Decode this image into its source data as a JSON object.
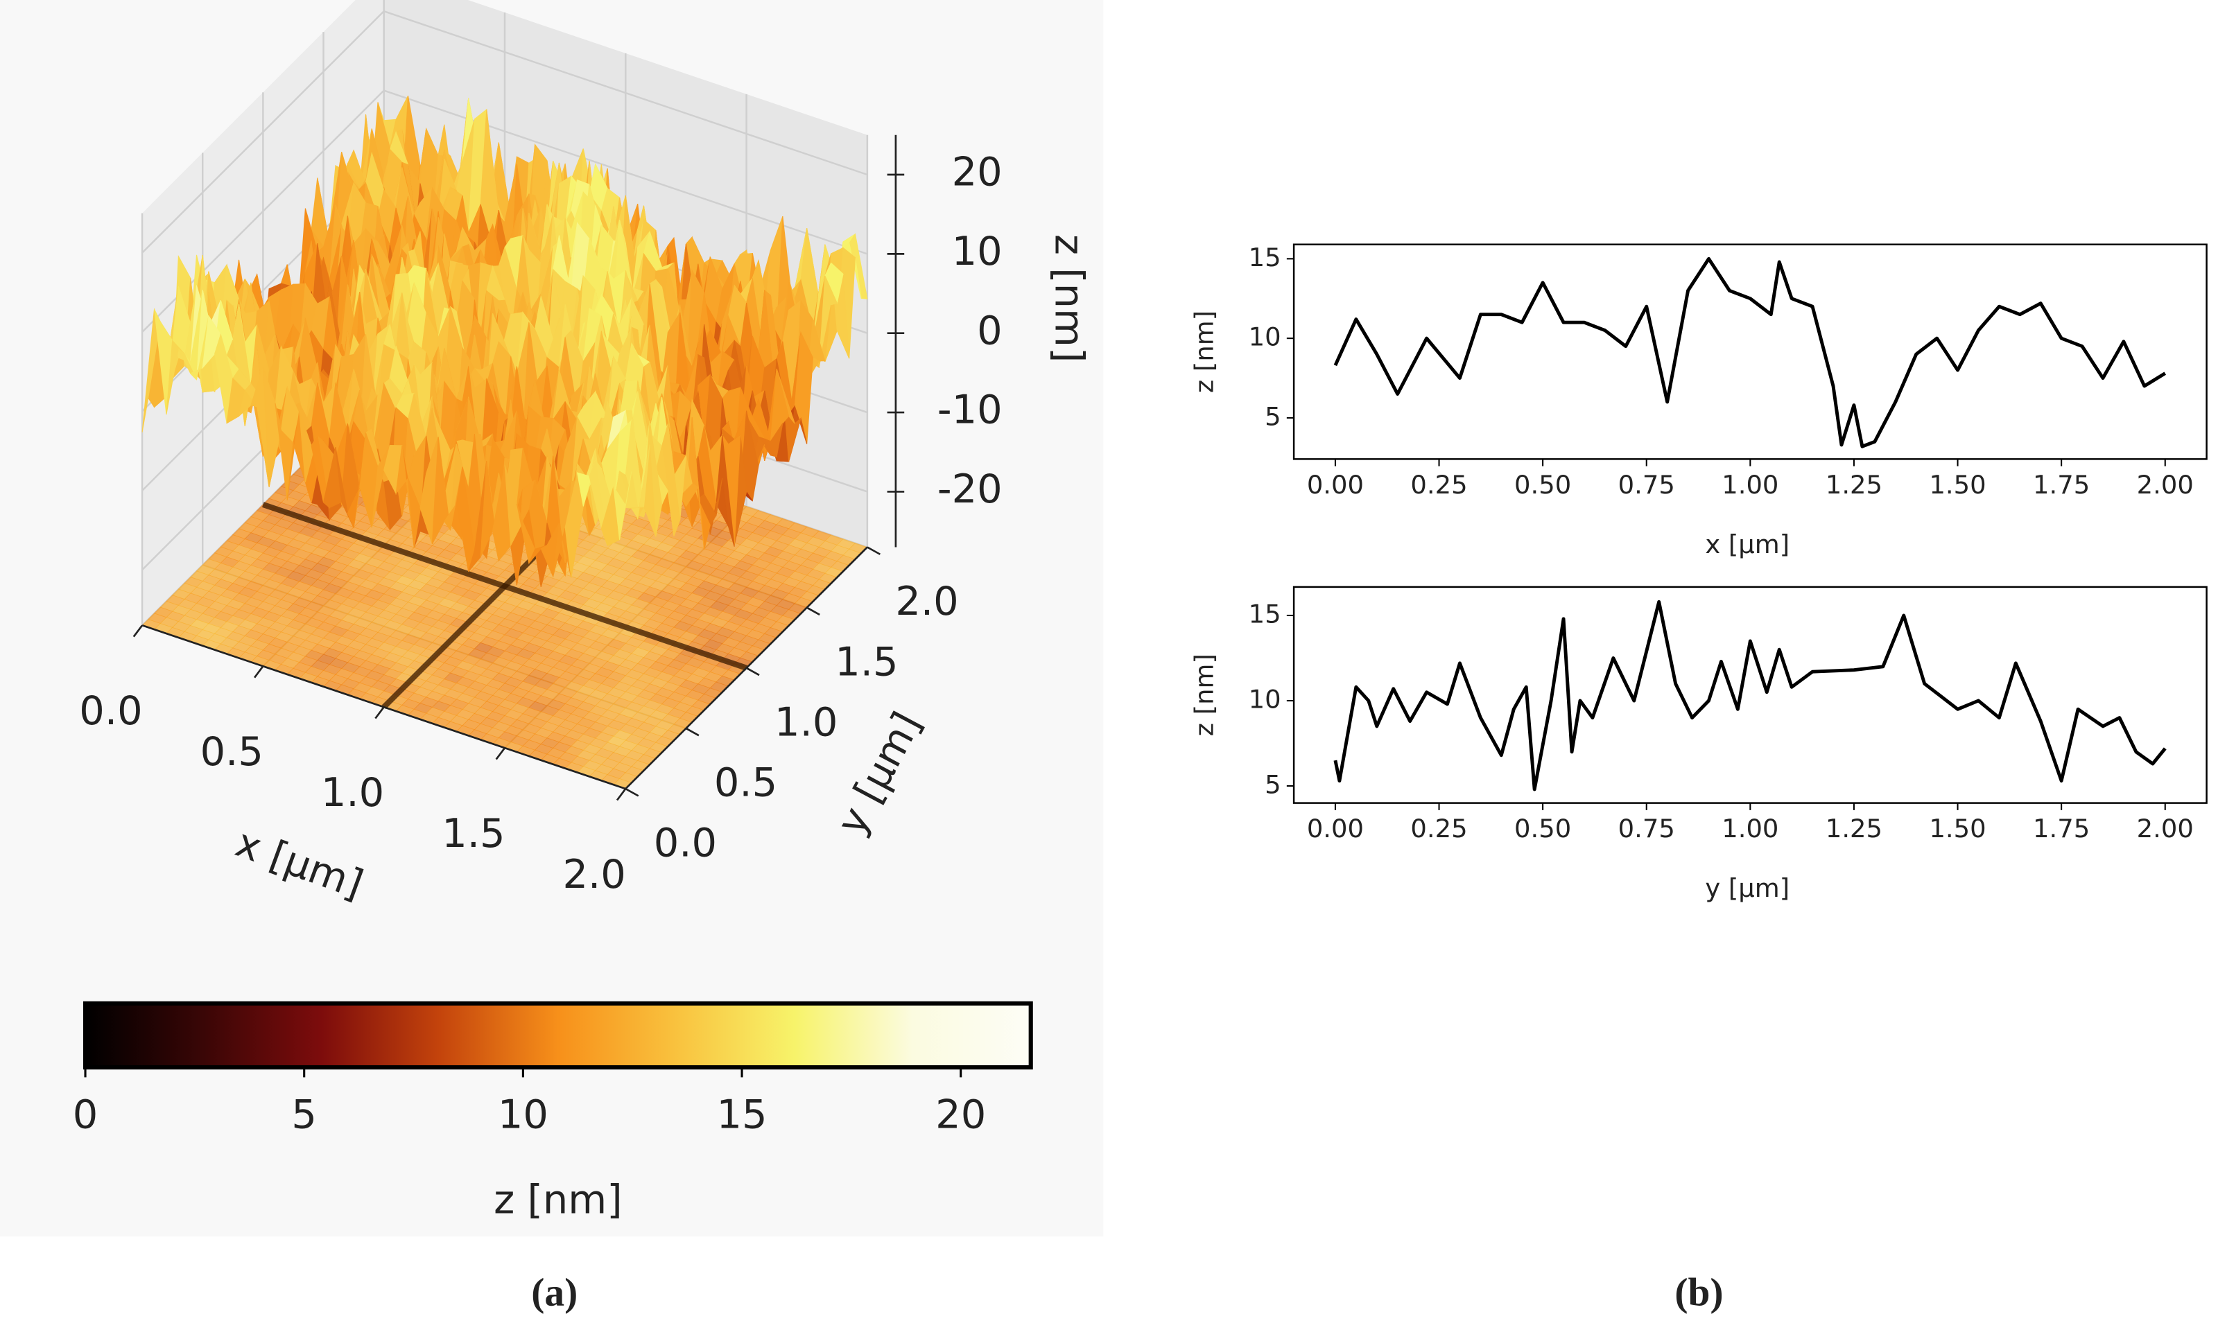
{
  "chart_data": [
    {
      "type": "surface3d",
      "xlabel": "x [μm]",
      "ylabel": "y [μm]",
      "zlabel": "z [nm]",
      "xlim": [
        0,
        2
      ],
      "ylim": [
        0,
        2
      ],
      "zlim": [
        -27,
        25
      ],
      "xticks": [
        {
          "value": 0,
          "label": "0.0"
        },
        0.5,
        {
          "value": 1,
          "label": "1.0"
        },
        1.5,
        {
          "value": 2,
          "label": "2.0"
        }
      ],
      "yticks": [
        {
          "value": 0,
          "label": "0.0"
        },
        0.5,
        {
          "value": 1,
          "label": "1.0"
        },
        1.5,
        {
          "value": 2,
          "label": "2.0"
        }
      ],
      "zticks": [
        -20,
        -10,
        0,
        10,
        20
      ],
      "grid": true
    },
    {
      "type": "colorbar",
      "xlabel": "z [nm]",
      "xlim": [
        0,
        21.6
      ],
      "xticks": [
        0,
        5,
        10,
        15,
        20
      ],
      "colors": [
        "#000000",
        "#3a0606",
        "#7d0c0c",
        "#c4440c",
        "#f7901a",
        "#f9c23e",
        "#f7f36a",
        "#fbfbe0",
        "#fdfdf6"
      ]
    },
    {
      "type": "line",
      "xlabel": "x [μm]",
      "ylabel": "z [nm]",
      "color": "#000000",
      "xlim": [
        -0.1,
        2.1
      ],
      "ylim": [
        2.41,
        15.9
      ],
      "xticks": [
        {
          "value": 0,
          "label": "0.00"
        },
        {
          "value": 0.25,
          "label": "0.25"
        },
        {
          "value": 0.5,
          "label": "0.50"
        },
        {
          "value": 0.75,
          "label": "0.75"
        },
        {
          "value": 1,
          "label": "1.00"
        },
        {
          "value": 1.25,
          "label": "1.25"
        },
        {
          "value": 1.5,
          "label": "1.50"
        },
        {
          "value": 1.75,
          "label": "1.75"
        },
        {
          "value": 2,
          "label": "2.00"
        }
      ],
      "yticks": [
        5,
        10,
        15
      ],
      "x": [
        0,
        0.05,
        0.1,
        0.15,
        0.2,
        0.22,
        0.3,
        0.35,
        0.4,
        0.45,
        0.5,
        0.55,
        0.6,
        0.65,
        0.7,
        0.75,
        0.8,
        0.85,
        0.9,
        0.95,
        1.0,
        1.05,
        1.07,
        1.1,
        1.15,
        1.2,
        1.22,
        1.25,
        1.27,
        1.3,
        1.35,
        1.4,
        1.45,
        1.5,
        1.55,
        1.6,
        1.65,
        1.7,
        1.75,
        1.8,
        1.85,
        1.9,
        1.95,
        2.0
      ],
      "values": [
        8.3,
        11.2,
        9,
        6.5,
        9,
        10,
        7.5,
        11.5,
        11.5,
        11,
        13.5,
        11,
        11,
        10.5,
        9.5,
        12,
        6,
        13,
        15,
        13,
        12.5,
        11.5,
        14.8,
        12.5,
        12,
        7,
        3.3,
        5.8,
        3.2,
        3.5,
        6,
        9,
        10,
        8,
        10.5,
        12,
        11.5,
        12.2,
        10,
        9.5,
        7.5,
        9.8,
        7,
        7.8
      ]
    },
    {
      "type": "line",
      "xlabel": "y [μm]",
      "ylabel": "z [nm]",
      "color": "#000000",
      "xlim": [
        -0.1,
        2.1
      ],
      "ylim": [
        4.0,
        16.67
      ],
      "xticks": [
        {
          "value": 0,
          "label": "0.00"
        },
        {
          "value": 0.25,
          "label": "0.25"
        },
        {
          "value": 0.5,
          "label": "0.50"
        },
        {
          "value": 0.75,
          "label": "0.75"
        },
        {
          "value": 1,
          "label": "1.00"
        },
        {
          "value": 1.25,
          "label": "1.25"
        },
        {
          "value": 1.5,
          "label": "1.50"
        },
        {
          "value": 1.75,
          "label": "1.75"
        },
        {
          "value": 2,
          "label": "2.00"
        }
      ],
      "yticks": [
        5,
        10,
        15
      ],
      "x": [
        0,
        0.01,
        0.05,
        0.08,
        0.1,
        0.14,
        0.18,
        0.22,
        0.27,
        0.3,
        0.35,
        0.4,
        0.43,
        0.46,
        0.48,
        0.52,
        0.55,
        0.57,
        0.59,
        0.62,
        0.67,
        0.72,
        0.78,
        0.82,
        0.86,
        0.9,
        0.93,
        0.97,
        1.0,
        1.04,
        1.07,
        1.1,
        1.15,
        1.25,
        1.32,
        1.37,
        1.42,
        1.5,
        1.55,
        1.6,
        1.64,
        1.7,
        1.75,
        1.79,
        1.85,
        1.89,
        1.93,
        1.97,
        2.0
      ],
      "values": [
        6.5,
        5.3,
        10.8,
        10,
        8.5,
        10.7,
        8.8,
        10.5,
        9.8,
        12.2,
        9,
        6.8,
        9.5,
        10.8,
        4.8,
        10,
        14.8,
        7,
        10,
        9,
        12.5,
        10,
        15.8,
        11,
        9,
        10,
        12.3,
        9.5,
        13.5,
        10.5,
        13,
        10.8,
        11.7,
        11.8,
        12,
        15,
        11,
        9.5,
        10,
        9,
        12.2,
        8.8,
        5.3,
        9.5,
        8.5,
        9,
        7,
        6.3,
        7.2
      ]
    }
  ],
  "captions": [
    "(a)",
    "(b)"
  ]
}
